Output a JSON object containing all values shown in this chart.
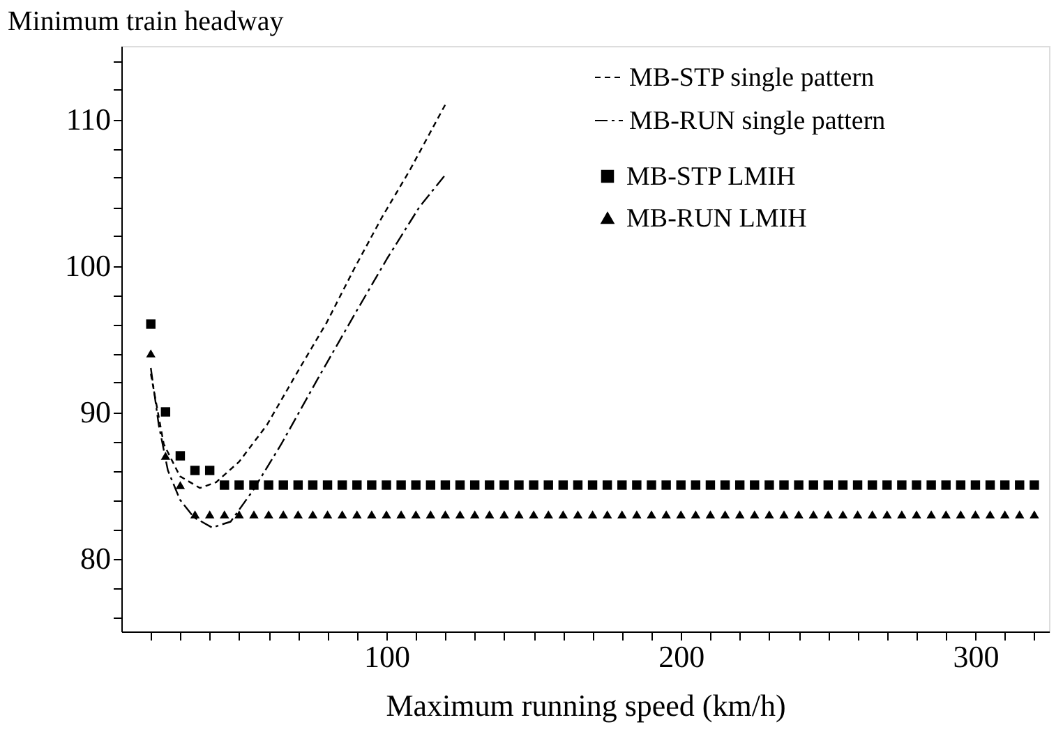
{
  "chart_data": {
    "type": "line",
    "xlabel": "Maximum running speed (km/h)",
    "ylabel": "Minimum train headway",
    "xlim": [
      10,
      325
    ],
    "ylim": [
      75,
      115
    ],
    "xticks": [
      {
        "value": 20,
        "label": null
      },
      {
        "value": 30,
        "label": null
      },
      {
        "value": 40,
        "label": null
      },
      {
        "value": 50,
        "label": null
      },
      {
        "value": 60,
        "label": null
      },
      {
        "value": 70,
        "label": null
      },
      {
        "value": 80,
        "label": null
      },
      {
        "value": 90,
        "label": null
      },
      100,
      {
        "value": 110,
        "label": null
      },
      {
        "value": 120,
        "label": null
      },
      {
        "value": 130,
        "label": null
      },
      {
        "value": 140,
        "label": null
      },
      {
        "value": 150,
        "label": null
      },
      {
        "value": 160,
        "label": null
      },
      {
        "value": 170,
        "label": null
      },
      {
        "value": 180,
        "label": null
      },
      {
        "value": 190,
        "label": null
      },
      200,
      {
        "value": 210,
        "label": null
      },
      {
        "value": 220,
        "label": null
      },
      {
        "value": 230,
        "label": null
      },
      {
        "value": 240,
        "label": null
      },
      {
        "value": 250,
        "label": null
      },
      {
        "value": 260,
        "label": null
      },
      {
        "value": 270,
        "label": null
      },
      {
        "value": 280,
        "label": null
      },
      {
        "value": 290,
        "label": null
      },
      300,
      {
        "value": 310,
        "label": null
      },
      {
        "value": 320,
        "label": null
      }
    ],
    "yticks": [
      {
        "value": 76,
        "label": null
      },
      {
        "value": 78,
        "label": null
      },
      80,
      {
        "value": 82,
        "label": null
      },
      {
        "value": 84,
        "label": null
      },
      {
        "value": 86,
        "label": null
      },
      {
        "value": 88,
        "label": null
      },
      90,
      {
        "value": 92,
        "label": null
      },
      {
        "value": 94,
        "label": null
      },
      {
        "value": 96,
        "label": null
      },
      {
        "value": 98,
        "label": null
      },
      100,
      {
        "value": 102,
        "label": null
      },
      {
        "value": 104,
        "label": null
      },
      {
        "value": 106,
        "label": null
      },
      {
        "value": 108,
        "label": null
      },
      110,
      {
        "value": 112,
        "label": null
      },
      {
        "value": 114,
        "label": null
      }
    ],
    "grid": false,
    "legend": "top right",
    "series": [
      {
        "name": "MB-STP single pattern",
        "type": "line",
        "line_style": "dashed",
        "color": "#000000",
        "x": [
          20,
          24.4,
          29.9,
          36.7,
          42.2,
          50,
          59.4,
          70.3,
          79.7,
          89.1,
          98.5,
          107.9,
          120
        ],
        "values": [
          92.6,
          87.8,
          85.6,
          84.8,
          85.2,
          86.6,
          89.1,
          92.9,
          96.1,
          99.8,
          103.3,
          106.5,
          111
        ]
      },
      {
        "name": "MB-RUN single pattern",
        "type": "line",
        "line_style": "dashdot",
        "color": "#000000",
        "x": [
          20,
          22.7,
          25.8,
          29.9,
          34.6,
          40.8,
          47.1,
          54.9,
          64.3,
          76.8,
          89.3,
          100.3,
          111.2,
          120
        ],
        "values": [
          93,
          89.1,
          86,
          84,
          82.8,
          82.1,
          82.5,
          84.7,
          87.8,
          92.3,
          96.7,
          100.5,
          104,
          106.2
        ]
      },
      {
        "name": "MB-STP LMIH",
        "type": "scatter",
        "marker": "square",
        "color": "#000000",
        "x": [
          20,
          25,
          30,
          35,
          40,
          45,
          50,
          55,
          60,
          65,
          70,
          75,
          80,
          85,
          90,
          95,
          100,
          105,
          110,
          115,
          120,
          125,
          130,
          135,
          140,
          145,
          150,
          155,
          160,
          165,
          170,
          175,
          180,
          185,
          190,
          195,
          200,
          205,
          210,
          215,
          220,
          225,
          230,
          235,
          240,
          245,
          250,
          255,
          260,
          265,
          270,
          275,
          280,
          285,
          290,
          295,
          300,
          305,
          310,
          315,
          320
        ],
        "values": [
          96,
          90,
          87,
          86,
          86,
          85,
          85,
          85,
          85,
          85,
          85,
          85,
          85,
          85,
          85,
          85,
          85,
          85,
          85,
          85,
          85,
          85,
          85,
          85,
          85,
          85,
          85,
          85,
          85,
          85,
          85,
          85,
          85,
          85,
          85,
          85,
          85,
          85,
          85,
          85,
          85,
          85,
          85,
          85,
          85,
          85,
          85,
          85,
          85,
          85,
          85,
          85,
          85,
          85,
          85,
          85,
          85,
          85,
          85,
          85,
          85
        ]
      },
      {
        "name": "MB-RUN LMIH",
        "type": "scatter",
        "marker": "triangle",
        "color": "#000000",
        "x": [
          20,
          25,
          30,
          35,
          40,
          45,
          50,
          55,
          60,
          65,
          70,
          75,
          80,
          85,
          90,
          95,
          100,
          105,
          110,
          115,
          120,
          125,
          130,
          135,
          140,
          145,
          150,
          155,
          160,
          165,
          170,
          175,
          180,
          185,
          190,
          195,
          200,
          205,
          210,
          215,
          220,
          225,
          230,
          235,
          240,
          245,
          250,
          255,
          260,
          265,
          270,
          275,
          280,
          285,
          290,
          295,
          300,
          305,
          310,
          315,
          320
        ],
        "values": [
          94,
          87,
          85,
          83,
          83,
          83,
          83,
          83,
          83,
          83,
          83,
          83,
          83,
          83,
          83,
          83,
          83,
          83,
          83,
          83,
          83,
          83,
          83,
          83,
          83,
          83,
          83,
          83,
          83,
          83,
          83,
          83,
          83,
          83,
          83,
          83,
          83,
          83,
          83,
          83,
          83,
          83,
          83,
          83,
          83,
          83,
          83,
          83,
          83,
          83,
          83,
          83,
          83,
          83,
          83,
          83,
          83,
          83,
          83,
          83,
          83
        ]
      }
    ]
  }
}
